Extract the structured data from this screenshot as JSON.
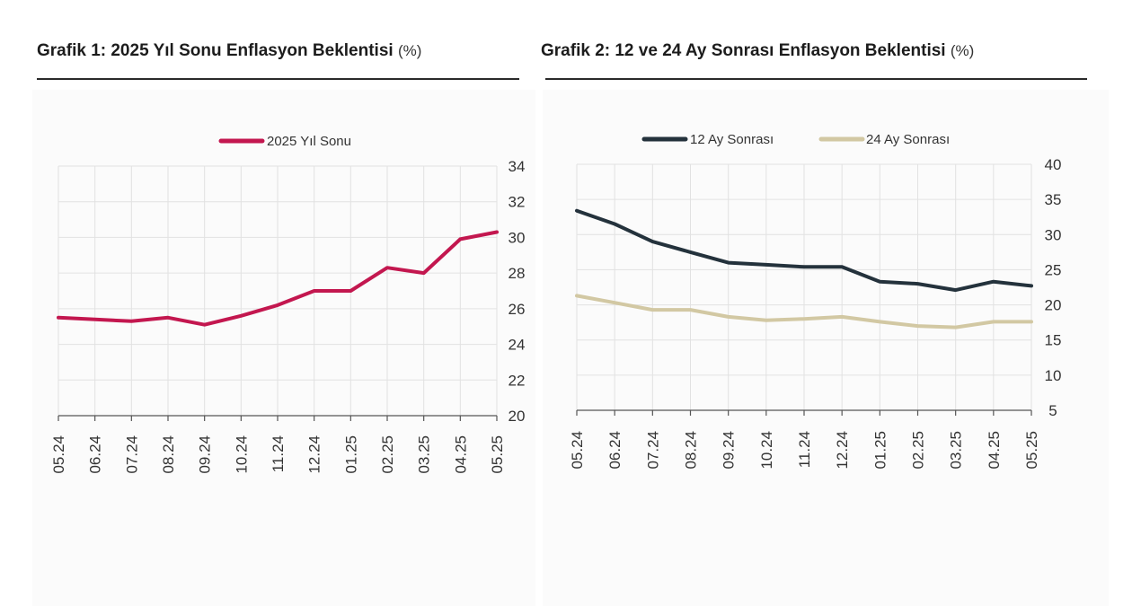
{
  "chart_data": [
    {
      "type": "line",
      "title": "Grafik 1: 2025 Yıl Sonu Enflasyon Beklentisi",
      "unit": "(%)",
      "categories": [
        "05.24",
        "06.24",
        "07.24",
        "08.24",
        "09.24",
        "10.24",
        "11.24",
        "12.24",
        "01.25",
        "02.25",
        "03.25",
        "04.25",
        "05.25"
      ],
      "y_axis": "right",
      "ylim": [
        20,
        34
      ],
      "yticks": [
        20,
        22,
        24,
        26,
        28,
        30,
        32,
        34
      ],
      "grid": true,
      "legend_position": "top-center",
      "series": [
        {
          "name": "2025 Yıl Sonu",
          "color": "#c3174f",
          "values": [
            25.5,
            25.4,
            25.3,
            25.5,
            25.1,
            25.6,
            26.2,
            27.0,
            27.0,
            28.3,
            28.0,
            29.9,
            30.3
          ]
        }
      ]
    },
    {
      "type": "line",
      "title": "Grafik 2: 12 ve 24 Ay Sonrası Enflasyon Beklentisi",
      "unit": "(%)",
      "categories": [
        "05.24",
        "06.24",
        "07.24",
        "08.24",
        "09.24",
        "10.24",
        "11.24",
        "12.24",
        "01.25",
        "02.25",
        "03.25",
        "04.25",
        "05.25"
      ],
      "y_axis": "right",
      "ylim": [
        5,
        40
      ],
      "yticks": [
        5,
        10,
        15,
        20,
        25,
        30,
        35,
        40
      ],
      "grid": true,
      "legend_position": "top-center",
      "series": [
        {
          "name": "12 Ay Sonrası",
          "color": "#24323c",
          "values": [
            33.4,
            31.5,
            29.0,
            27.5,
            26.0,
            25.7,
            25.4,
            25.4,
            23.3,
            23.0,
            22.1,
            23.3,
            22.7
          ]
        },
        {
          "name": "24 Ay Sonrası",
          "color": "#d2c8a3",
          "values": [
            21.3,
            20.3,
            19.3,
            19.3,
            18.3,
            17.8,
            18.0,
            18.3,
            17.6,
            17.0,
            16.8,
            17.6,
            17.6
          ]
        }
      ]
    }
  ]
}
